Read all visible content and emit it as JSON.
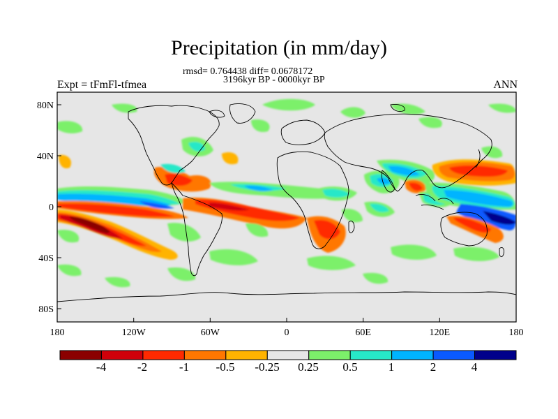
{
  "title": "Precipitation (in mm/day)",
  "stats_line": "rmsd= 0.764438 diff= 0.0678172",
  "period_line": "3196kyr BP - 0000kyr BP",
  "experiment_label": "Expt = tFmFl-tfmea",
  "season_label": "ANN",
  "map": {
    "projection": "cylindrical equidistant",
    "lon_range": [
      -180,
      180
    ],
    "lat_range": [
      -90,
      90
    ],
    "background_color": "#e6e6e6",
    "lon_ticks": [
      "180",
      "120W",
      "60W",
      "0",
      "60E",
      "120E",
      "180"
    ],
    "lat_ticks": [
      "80N",
      "40N",
      "0",
      "40S",
      "80S"
    ]
  },
  "colorbar": {
    "labels": [
      "-4",
      "-2",
      "-1",
      "-0.5",
      "-0.25",
      "0.25",
      "0.5",
      "1",
      "2",
      "4"
    ],
    "colors": [
      "#8b0000",
      "#d0000a",
      "#ff2a00",
      "#ff7700",
      "#ffb300",
      "#e6e6e6",
      "#7cf06a",
      "#27e8c8",
      "#00b4ff",
      "#0a5aff",
      "#00008b"
    ]
  }
}
